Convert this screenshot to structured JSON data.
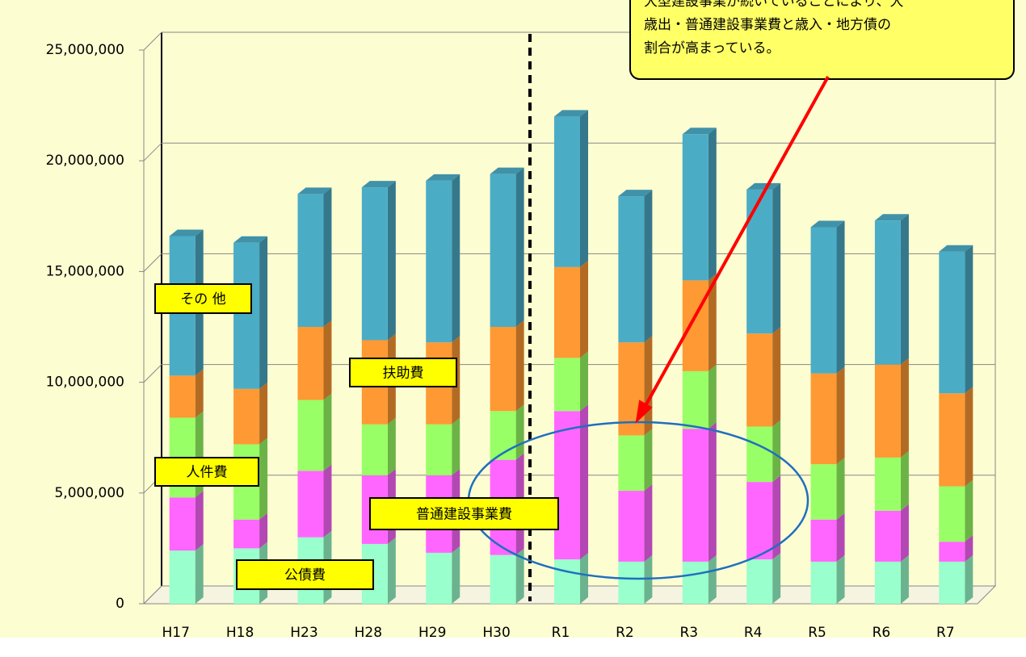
{
  "chart_data": {
    "type": "bar3d_stacked",
    "categories": [
      "H17",
      "H18",
      "H23",
      "H28",
      "H29",
      "H30",
      "R1",
      "R2",
      "R3",
      "R4",
      "R5",
      "R6",
      "R7"
    ],
    "series": [
      {
        "name": "公債費",
        "color": "#99ffcc",
        "values": [
          2400000,
          2500000,
          3000000,
          2700000,
          2300000,
          2200000,
          2000000,
          1900000,
          1900000,
          2000000,
          1900000,
          1900000,
          1900000
        ]
      },
      {
        "name": "普通建設事業費",
        "color": "#ff66ff",
        "values": [
          2400000,
          1300000,
          3000000,
          3100000,
          3500000,
          4300000,
          6700000,
          3200000,
          6000000,
          3500000,
          1900000,
          2300000,
          900000
        ]
      },
      {
        "name": "人件費",
        "color": "#99ff66",
        "values": [
          3600000,
          3400000,
          3200000,
          2300000,
          2300000,
          2200000,
          2400000,
          2500000,
          2600000,
          2500000,
          2500000,
          2400000,
          2500000
        ]
      },
      {
        "name": "扶助費",
        "color": "#ff9933",
        "values": [
          1900000,
          2500000,
          3300000,
          3800000,
          3700000,
          3800000,
          4100000,
          4200000,
          4100000,
          4200000,
          4100000,
          4200000,
          4200000
        ]
      },
      {
        "name": "その 他",
        "color": "#4bacc6",
        "values": [
          6300000,
          6600000,
          6000000,
          6900000,
          7300000,
          6900000,
          6800000,
          6600000,
          6600000,
          6500000,
          6600000,
          6500000,
          6400000
        ]
      }
    ],
    "ylim": [
      0,
      25000000
    ],
    "yticks": [
      0,
      {
        "value": 5000000,
        "label": "5,000,000"
      },
      {
        "value": 10000000,
        "label": "10,000,000"
      },
      {
        "value": 15000000,
        "label": "15,000,000"
      },
      {
        "value": 20000000,
        "label": "20,000,000"
      },
      {
        "value": 25000000,
        "label": "25,000,000"
      }
    ],
    "grid": true,
    "annotation": [
      "大型建設事業が続いていることにより、大",
      "歳出・普通建設事業費と歳入・地方債の",
      "割合が高まっている。"
    ]
  }
}
